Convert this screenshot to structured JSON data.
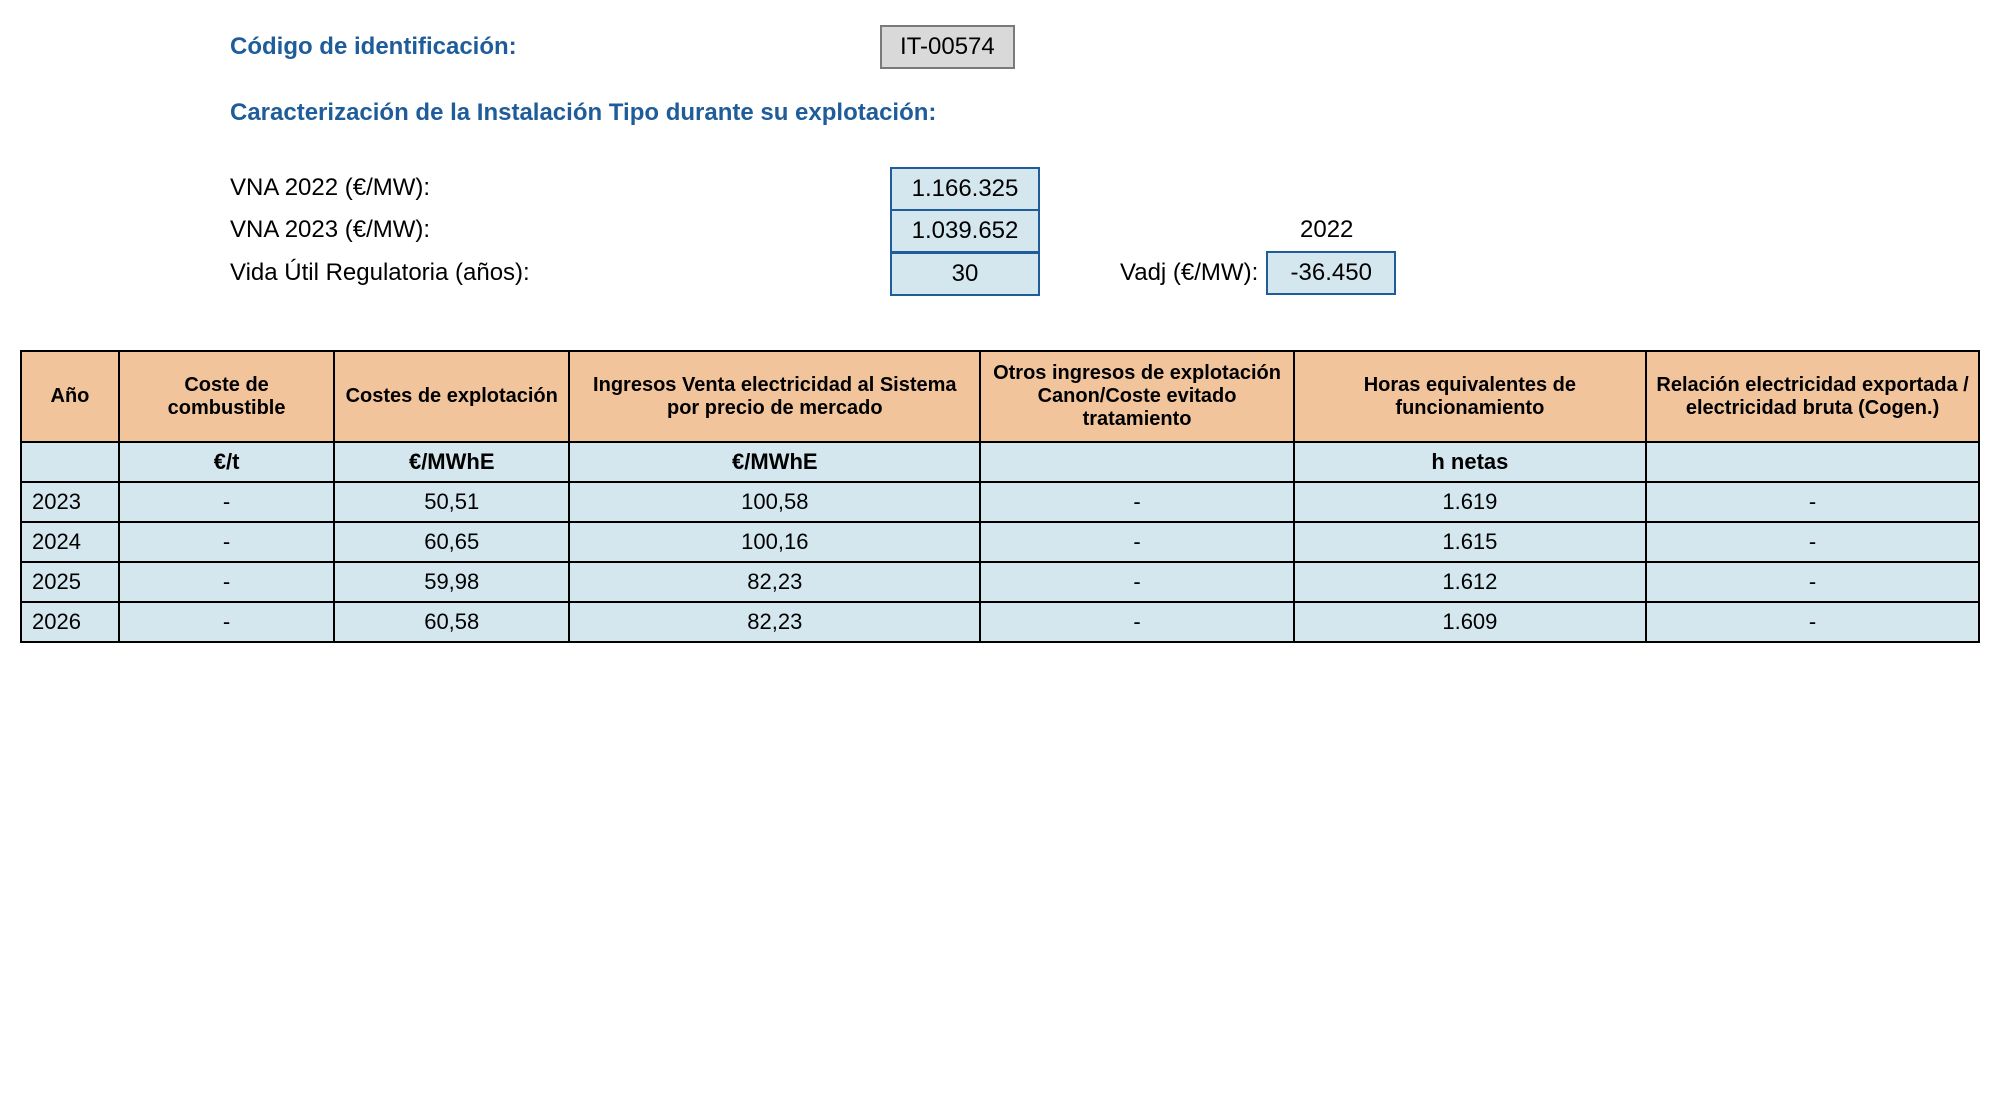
{
  "header": {
    "codigo_label": "Código de identificación:",
    "codigo_value": "IT-00574",
    "subtitle": "Caracterización de la Instalación Tipo durante su explotación:",
    "params": [
      {
        "label": "VNA 2022 (€/MW):",
        "value": "1.166.325"
      },
      {
        "label": "VNA 2023 (€/MW):",
        "value": "1.039.652"
      },
      {
        "label": "Vida Útil Regulatoria (años):",
        "value": "30"
      }
    ],
    "year_ref": "2022",
    "vadj_label": "Vadj (€/MW):",
    "vadj_value": "-36.450"
  },
  "table": {
    "columns": [
      "Año",
      "Coste de combustible",
      "Costes de explotación",
      "Ingresos Venta electricidad al Sistema por precio de mercado",
      "Otros ingresos de explotación Canon/Coste evitado tratamiento",
      "Horas equivalentes de funcionamiento",
      "Relación electricidad exportada / electricidad bruta\n(Cogen.)"
    ],
    "units": [
      "",
      "€/t",
      "€/MWhE",
      "€/MWhE",
      "",
      "h netas",
      ""
    ],
    "rows": [
      [
        "2023",
        "-",
        "50,51",
        "100,58",
        "-",
        "1.619",
        "-"
      ],
      [
        "2024",
        "-",
        "60,65",
        "100,16",
        "-",
        "1.615",
        "-"
      ],
      [
        "2025",
        "-",
        "59,98",
        "82,23",
        "-",
        "1.612",
        "-"
      ],
      [
        "2026",
        "-",
        "60,58",
        "82,23",
        "-",
        "1.609",
        "-"
      ]
    ]
  },
  "style": {
    "header_bg": "#f2c49b",
    "cell_bg": "#d5e7ee",
    "blue": "#1f5d9a",
    "border": "#000000"
  }
}
